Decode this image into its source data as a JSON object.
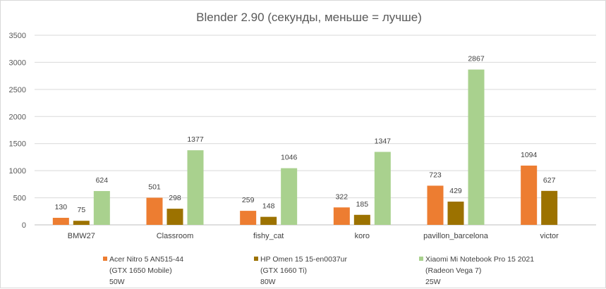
{
  "chart_data": {
    "type": "bar",
    "title": "Blender 2.90 (секунды, меньше = лучше)",
    "xlabel": "",
    "ylabel": "",
    "ylim": [
      0,
      3500
    ],
    "yticks": [
      0,
      500,
      1000,
      1500,
      2000,
      2500,
      3000,
      3500
    ],
    "grid": true,
    "legend_position": "bottom",
    "categories": [
      "BMW27",
      "Classroom",
      "fishy_cat",
      "koro",
      "pavillon_barcelona",
      "victor"
    ],
    "series": [
      {
        "name": "Acer Nitro 5 AN515-44 (GTX 1650 Mobile) 50W",
        "legend_lines": [
          "Acer Nitro 5 AN515-44",
          "(GTX 1650 Mobile)",
          "50W"
        ],
        "color": "#ed7d31",
        "values": [
          130,
          501,
          259,
          322,
          723,
          1094
        ]
      },
      {
        "name": "HP Omen 15 15-en0037ur (GTX 1660 Ti) 80W",
        "legend_lines": [
          "HP Omen 15 15-en0037ur",
          "(GTX 1660 Ti)",
          "80W"
        ],
        "color": "#9c7200",
        "values": [
          75,
          298,
          148,
          185,
          429,
          627
        ]
      },
      {
        "name": "Xiaomi Mi Notebook Pro 15 2021 (Radeon Vega 7) 25W",
        "legend_lines": [
          "Xiaomi Mi Notebook Pro 15 2021",
          "(Radeon Vega 7)",
          "25W"
        ],
        "color": "#a9d18e",
        "values": [
          624,
          1377,
          1046,
          1347,
          2867,
          null
        ]
      }
    ]
  }
}
